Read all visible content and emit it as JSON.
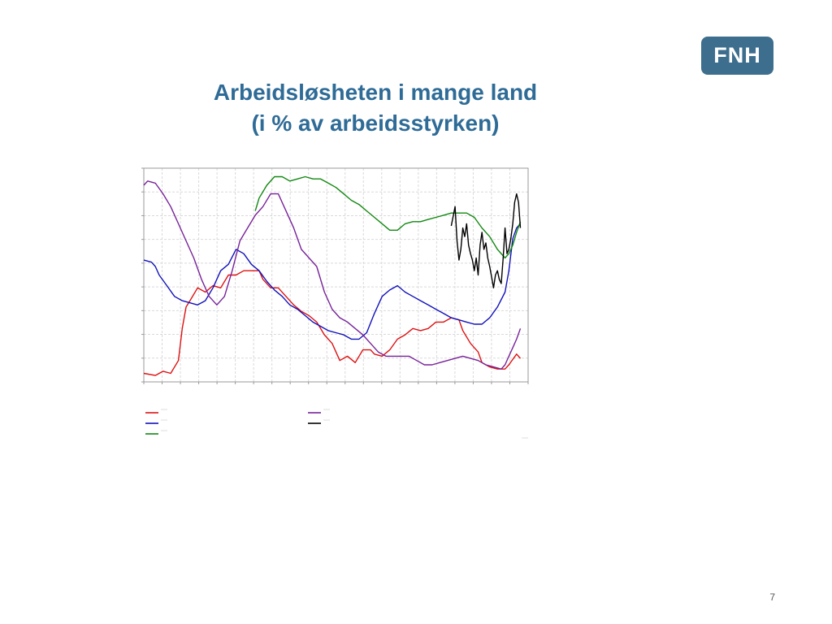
{
  "logo": {
    "text": "FNH",
    "color": "#3e6e8e"
  },
  "title": {
    "line1": "Arbeidsløsheten i mange land",
    "line2": "(i % av arbeidsstyrken)",
    "color": "#2e6b96"
  },
  "page_number": "7",
  "chart_data": {
    "type": "line",
    "title": "",
    "xlabel": "",
    "ylabel": "",
    "xlim": [
      0,
      100
    ],
    "ylim": [
      0,
      100
    ],
    "grid": true,
    "legend": "bottom",
    "series": [
      {
        "color": "#dd1111",
        "points": [
          [
            0,
            4
          ],
          [
            3,
            3
          ],
          [
            5,
            5
          ],
          [
            7,
            4
          ],
          [
            9,
            10
          ],
          [
            10,
            25
          ],
          [
            11,
            35
          ],
          [
            12,
            38
          ],
          [
            14,
            44
          ],
          [
            16,
            42
          ],
          [
            18,
            45
          ],
          [
            20,
            44
          ],
          [
            22,
            50
          ],
          [
            24,
            50
          ],
          [
            26,
            52
          ],
          [
            28,
            52
          ],
          [
            30,
            52
          ],
          [
            31,
            48
          ],
          [
            33,
            44
          ],
          [
            35,
            44
          ],
          [
            37,
            40
          ],
          [
            39,
            36
          ],
          [
            41,
            33
          ],
          [
            43,
            31
          ],
          [
            45,
            28
          ],
          [
            47,
            22
          ],
          [
            49,
            18
          ],
          [
            51,
            10
          ],
          [
            53,
            12
          ],
          [
            55,
            9
          ],
          [
            57,
            15
          ],
          [
            59,
            15
          ],
          [
            60,
            13
          ],
          [
            62,
            12
          ],
          [
            64,
            15
          ],
          [
            66,
            20
          ],
          [
            68,
            22
          ],
          [
            70,
            25
          ],
          [
            72,
            24
          ],
          [
            74,
            25
          ],
          [
            76,
            28
          ],
          [
            78,
            28
          ],
          [
            80,
            30
          ],
          [
            82,
            29
          ],
          [
            83,
            24
          ],
          [
            85,
            18
          ],
          [
            87,
            14
          ],
          [
            88,
            9
          ],
          [
            90,
            7
          ],
          [
            92,
            6
          ],
          [
            94,
            6
          ],
          [
            95,
            8
          ],
          [
            97,
            13
          ],
          [
            98,
            11
          ]
        ]
      },
      {
        "color": "#1111bb",
        "points": [
          [
            0,
            57
          ],
          [
            2,
            56
          ],
          [
            3,
            54
          ],
          [
            4,
            50
          ],
          [
            6,
            45
          ],
          [
            8,
            40
          ],
          [
            10,
            38
          ],
          [
            12,
            37
          ],
          [
            14,
            36
          ],
          [
            16,
            38
          ],
          [
            18,
            44
          ],
          [
            20,
            52
          ],
          [
            22,
            55
          ],
          [
            24,
            62
          ],
          [
            26,
            60
          ],
          [
            28,
            55
          ],
          [
            30,
            52
          ],
          [
            32,
            47
          ],
          [
            34,
            43
          ],
          [
            36,
            40
          ],
          [
            38,
            36
          ],
          [
            40,
            34
          ],
          [
            42,
            31
          ],
          [
            44,
            28
          ],
          [
            46,
            26
          ],
          [
            48,
            24
          ],
          [
            50,
            23
          ],
          [
            52,
            22
          ],
          [
            54,
            20
          ],
          [
            56,
            20
          ],
          [
            58,
            23
          ],
          [
            60,
            32
          ],
          [
            62,
            40
          ],
          [
            64,
            43
          ],
          [
            66,
            45
          ],
          [
            68,
            42
          ],
          [
            70,
            40
          ],
          [
            72,
            38
          ],
          [
            74,
            36
          ],
          [
            76,
            34
          ],
          [
            78,
            32
          ],
          [
            80,
            30
          ],
          [
            82,
            29
          ],
          [
            84,
            28
          ],
          [
            86,
            27
          ],
          [
            88,
            27
          ],
          [
            90,
            30
          ],
          [
            92,
            35
          ],
          [
            94,
            42
          ],
          [
            95,
            52
          ],
          [
            96,
            67
          ],
          [
            97,
            72
          ],
          [
            98,
            74
          ]
        ]
      },
      {
        "color": "#118811",
        "points": [
          [
            29,
            80
          ],
          [
            30,
            86
          ],
          [
            32,
            92
          ],
          [
            34,
            96
          ],
          [
            36,
            96
          ],
          [
            38,
            94
          ],
          [
            40,
            95
          ],
          [
            42,
            96
          ],
          [
            44,
            95
          ],
          [
            46,
            95
          ],
          [
            48,
            93
          ],
          [
            50,
            91
          ],
          [
            52,
            88
          ],
          [
            54,
            85
          ],
          [
            56,
            83
          ],
          [
            58,
            80
          ],
          [
            60,
            77
          ],
          [
            62,
            74
          ],
          [
            64,
            71
          ],
          [
            66,
            71
          ],
          [
            68,
            74
          ],
          [
            70,
            75
          ],
          [
            72,
            75
          ],
          [
            74,
            76
          ],
          [
            76,
            77
          ],
          [
            78,
            78
          ],
          [
            80,
            79
          ],
          [
            82,
            79
          ],
          [
            84,
            79
          ],
          [
            86,
            77
          ],
          [
            88,
            72
          ],
          [
            90,
            68
          ],
          [
            92,
            62
          ],
          [
            94,
            58
          ],
          [
            95,
            60
          ],
          [
            96,
            64
          ],
          [
            97,
            70
          ],
          [
            98,
            75
          ]
        ]
      },
      {
        "color": "#772299",
        "points": [
          [
            0,
            92
          ],
          [
            1,
            94
          ],
          [
            3,
            93
          ],
          [
            5,
            88
          ],
          [
            7,
            82
          ],
          [
            9,
            74
          ],
          [
            11,
            66
          ],
          [
            13,
            58
          ],
          [
            15,
            48
          ],
          [
            17,
            40
          ],
          [
            19,
            36
          ],
          [
            21,
            40
          ],
          [
            23,
            52
          ],
          [
            25,
            66
          ],
          [
            27,
            72
          ],
          [
            29,
            78
          ],
          [
            31,
            82
          ],
          [
            33,
            88
          ],
          [
            35,
            88
          ],
          [
            37,
            80
          ],
          [
            39,
            72
          ],
          [
            41,
            62
          ],
          [
            43,
            58
          ],
          [
            45,
            54
          ],
          [
            47,
            42
          ],
          [
            49,
            34
          ],
          [
            51,
            30
          ],
          [
            53,
            28
          ],
          [
            55,
            25
          ],
          [
            57,
            22
          ],
          [
            59,
            18
          ],
          [
            61,
            14
          ],
          [
            63,
            12
          ],
          [
            65,
            12
          ],
          [
            67,
            12
          ],
          [
            69,
            12
          ],
          [
            71,
            10
          ],
          [
            73,
            8
          ],
          [
            75,
            8
          ],
          [
            77,
            9
          ],
          [
            79,
            10
          ],
          [
            81,
            11
          ],
          [
            83,
            12
          ],
          [
            85,
            11
          ],
          [
            87,
            10
          ],
          [
            89,
            8
          ],
          [
            91,
            7
          ],
          [
            93,
            6
          ],
          [
            94,
            8
          ],
          [
            95,
            12
          ],
          [
            96,
            16
          ],
          [
            97,
            20
          ],
          [
            98,
            25
          ]
        ]
      },
      {
        "color": "#000000",
        "points": [
          [
            80,
            73
          ],
          [
            81,
            82
          ],
          [
            81.5,
            66
          ],
          [
            82,
            57
          ],
          [
            82.5,
            62
          ],
          [
            83,
            72
          ],
          [
            83.5,
            68
          ],
          [
            84,
            74
          ],
          [
            84.5,
            64
          ],
          [
            85,
            60
          ],
          [
            85.5,
            57
          ],
          [
            86,
            52
          ],
          [
            86.5,
            58
          ],
          [
            87,
            50
          ],
          [
            87.5,
            64
          ],
          [
            88,
            70
          ],
          [
            88.5,
            62
          ],
          [
            89,
            65
          ],
          [
            89.5,
            58
          ],
          [
            90,
            54
          ],
          [
            90.5,
            49
          ],
          [
            91,
            44
          ],
          [
            91.5,
            50
          ],
          [
            92,
            52
          ],
          [
            92.5,
            48
          ],
          [
            93,
            46
          ],
          [
            93.5,
            58
          ],
          [
            94,
            72
          ],
          [
            94.5,
            60
          ],
          [
            95,
            62
          ],
          [
            95.5,
            67
          ],
          [
            96,
            74
          ],
          [
            96.5,
            84
          ],
          [
            97,
            88
          ],
          [
            97.5,
            84
          ],
          [
            98,
            72
          ]
        ]
      }
    ]
  }
}
